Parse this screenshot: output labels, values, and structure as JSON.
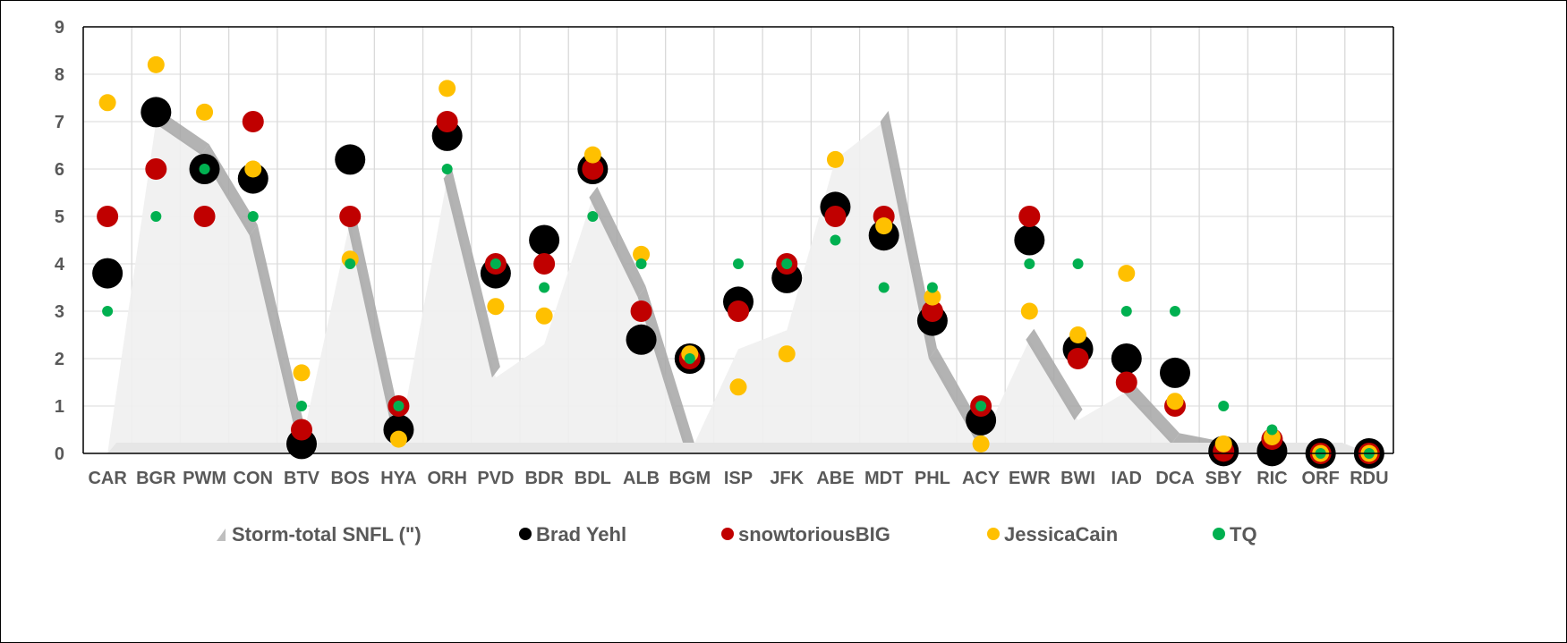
{
  "chart_data": {
    "type": "scatter",
    "title": "",
    "xlabel": "",
    "ylabel": "",
    "ylim": [
      0,
      9
    ],
    "y_ticks": [
      "0",
      "1",
      "2",
      "3",
      "4",
      "5",
      "6",
      "7",
      "8",
      "9"
    ],
    "grid": true,
    "legend_position": "bottom",
    "categories": [
      "CAR",
      "BGR",
      "PWM",
      "CON",
      "BTV",
      "BOS",
      "HYA",
      "ORH",
      "PVD",
      "BDR",
      "BDL",
      "ALB",
      "BGM",
      "ISP",
      "JFK",
      "ABE",
      "MDT",
      "PHL",
      "ACY",
      "EWR",
      "BWI",
      "IAD",
      "DCA",
      "SBY",
      "RIC",
      "ORF",
      "RDU"
    ],
    "series": [
      {
        "name": "Storm-total SNFL (\")",
        "kind": "area",
        "color": "#d9d9d9",
        "values": [
          0,
          7,
          6.3,
          4.6,
          0.2,
          4.9,
          0.2,
          5.8,
          1.6,
          2.3,
          5.4,
          3.3,
          0,
          2.2,
          2.6,
          6.2,
          7,
          2,
          0.2,
          2.4,
          0.7,
          1.3,
          0.2,
          0,
          0,
          0,
          0
        ]
      },
      {
        "name": "Brad Yehl",
        "kind": "dot",
        "color": "#000000",
        "values": [
          3.8,
          7.2,
          6,
          5.8,
          0.2,
          6.2,
          0.5,
          6.7,
          3.8,
          4.5,
          6,
          2.4,
          2,
          3.2,
          3.7,
          5.2,
          4.6,
          2.8,
          0.7,
          4.5,
          2.2,
          2,
          1.7,
          0.05,
          0.05,
          0,
          0
        ]
      },
      {
        "name": "snowtoriousBIG",
        "kind": "dot",
        "color": "#c00000",
        "values": [
          5,
          6,
          5,
          7,
          0.5,
          5,
          1,
          7,
          4,
          4,
          6,
          3,
          2,
          3,
          4,
          5,
          5,
          3,
          1,
          5,
          2,
          1.5,
          1,
          0.05,
          0.3,
          0,
          0
        ]
      },
      {
        "name": "JessicaCain",
        "kind": "dot",
        "color": "#ffc000",
        "values": [
          7.4,
          8.2,
          7.2,
          6,
          1.7,
          4.1,
          0.3,
          7.7,
          3.1,
          2.9,
          6.3,
          4.2,
          2.1,
          1.4,
          2.1,
          6.2,
          4.8,
          3.3,
          0.2,
          3,
          2.5,
          3.8,
          1.1,
          0.2,
          0.35,
          0,
          0
        ]
      },
      {
        "name": "TQ",
        "kind": "dot",
        "color": "#00b050",
        "values": [
          3,
          5,
          6,
          5,
          1,
          4,
          1,
          6,
          4,
          3.5,
          5,
          4,
          2,
          4,
          4,
          4.5,
          3.5,
          3.5,
          1,
          4,
          4,
          3,
          3,
          1,
          0.5,
          0,
          0
        ]
      }
    ]
  }
}
